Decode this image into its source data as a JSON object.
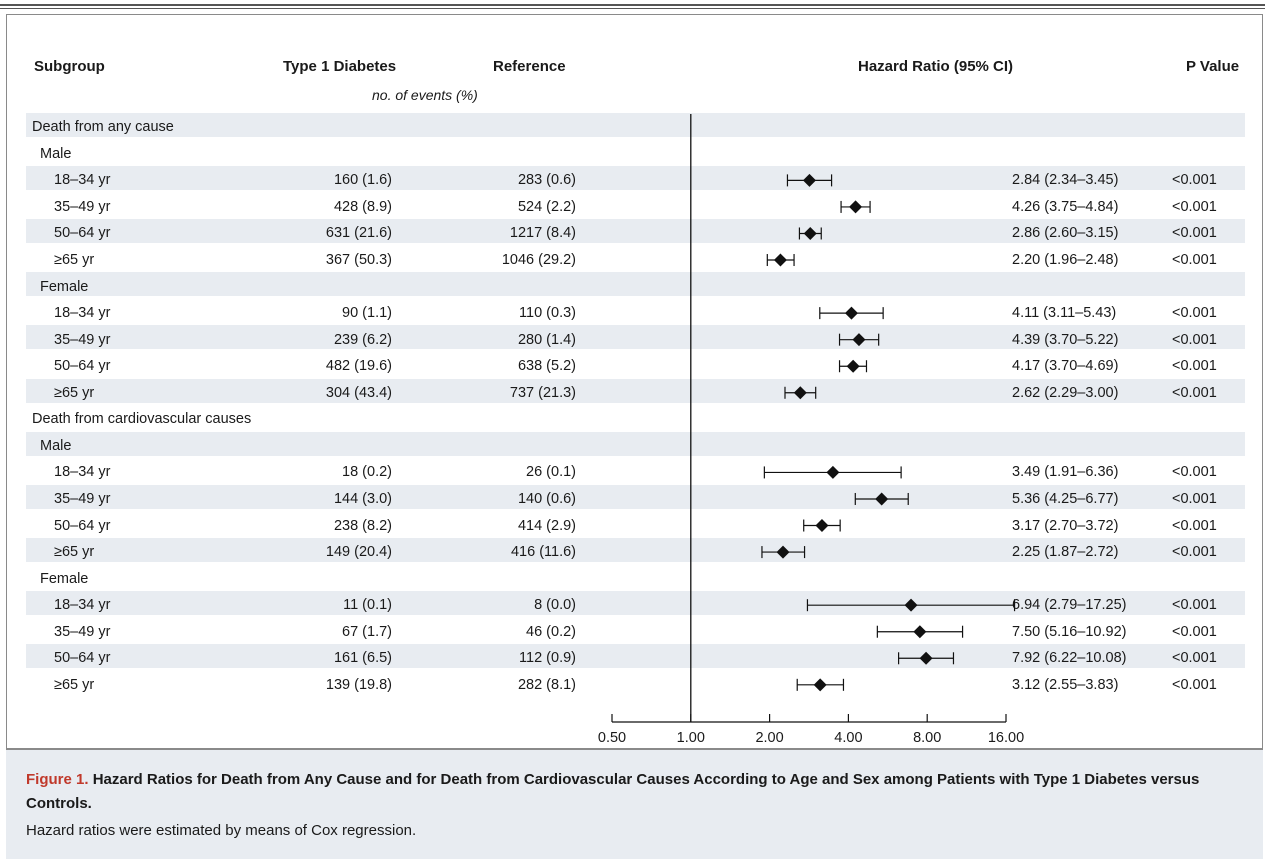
{
  "headers": {
    "subgroup": "Subgroup",
    "type1": "Type 1 Diabetes",
    "reference": "Reference",
    "hazard": "Hazard Ratio (95% CI)",
    "pvalue": "P Value",
    "events_note": "no. of events (%)"
  },
  "chart_data": {
    "type": "forest",
    "x_scale": "log2",
    "xlim": [
      0.5,
      16
    ],
    "x_ticks": [
      "0.50",
      "1.00",
      "2.00",
      "4.00",
      "8.00",
      "16.00"
    ],
    "x_tick_values": [
      0.5,
      1,
      2,
      4,
      8,
      16
    ],
    "reference_line": 1.0,
    "rows": [
      {
        "kind": "section",
        "label": "Death from any cause"
      },
      {
        "kind": "group",
        "label": "Male"
      },
      {
        "kind": "data",
        "label": "18–34 yr",
        "t1d": "160 (1.6)",
        "ref": "283 (0.6)",
        "hr": 2.84,
        "lo": 2.34,
        "hi": 3.45,
        "hr_text": "2.84 (2.34–3.45)",
        "p": "<0.001"
      },
      {
        "kind": "data",
        "label": "35–49 yr",
        "t1d": "428 (8.9)",
        "ref": "524 (2.2)",
        "hr": 4.26,
        "lo": 3.75,
        "hi": 4.84,
        "hr_text": "4.26 (3.75–4.84)",
        "p": "<0.001"
      },
      {
        "kind": "data",
        "label": "50–64 yr",
        "t1d": "631 (21.6)",
        "ref": "1217 (8.4)",
        "hr": 2.86,
        "lo": 2.6,
        "hi": 3.15,
        "hr_text": "2.86 (2.60–3.15)",
        "p": "<0.001"
      },
      {
        "kind": "data",
        "label": "≥65 yr",
        "t1d": "367 (50.3)",
        "ref": "1046 (29.2)",
        "hr": 2.2,
        "lo": 1.96,
        "hi": 2.48,
        "hr_text": "2.20 (1.96–2.48)",
        "p": "<0.001"
      },
      {
        "kind": "group",
        "label": "Female"
      },
      {
        "kind": "data",
        "label": "18–34 yr",
        "t1d": "90 (1.1)",
        "ref": "110 (0.3)",
        "hr": 4.11,
        "lo": 3.11,
        "hi": 5.43,
        "hr_text": "4.11 (3.11–5.43)",
        "p": "<0.001"
      },
      {
        "kind": "data",
        "label": "35–49 yr",
        "t1d": "239 (6.2)",
        "ref": "280 (1.4)",
        "hr": 4.39,
        "lo": 3.7,
        "hi": 5.22,
        "hr_text": "4.39 (3.70–5.22)",
        "p": "<0.001"
      },
      {
        "kind": "data",
        "label": "50–64 yr",
        "t1d": "482 (19.6)",
        "ref": "638 (5.2)",
        "hr": 4.17,
        "lo": 3.7,
        "hi": 4.69,
        "hr_text": "4.17 (3.70–4.69)",
        "p": "<0.001"
      },
      {
        "kind": "data",
        "label": "≥65 yr",
        "t1d": "304 (43.4)",
        "ref": "737 (21.3)",
        "hr": 2.62,
        "lo": 2.29,
        "hi": 3.0,
        "hr_text": "2.62 (2.29–3.00)",
        "p": "<0.001"
      },
      {
        "kind": "section",
        "label": "Death from cardiovascular causes"
      },
      {
        "kind": "group",
        "label": "Male"
      },
      {
        "kind": "data",
        "label": "18–34 yr",
        "t1d": "18 (0.2)",
        "ref": "26 (0.1)",
        "hr": 3.49,
        "lo": 1.91,
        "hi": 6.36,
        "hr_text": "3.49 (1.91–6.36)",
        "p": "<0.001"
      },
      {
        "kind": "data",
        "label": "35–49 yr",
        "t1d": "144 (3.0)",
        "ref": "140 (0.6)",
        "hr": 5.36,
        "lo": 4.25,
        "hi": 6.77,
        "hr_text": "5.36 (4.25–6.77)",
        "p": "<0.001"
      },
      {
        "kind": "data",
        "label": "50–64 yr",
        "t1d": "238 (8.2)",
        "ref": "414 (2.9)",
        "hr": 3.17,
        "lo": 2.7,
        "hi": 3.72,
        "hr_text": "3.17 (2.70–3.72)",
        "p": "<0.001"
      },
      {
        "kind": "data",
        "label": "≥65 yr",
        "t1d": "149 (20.4)",
        "ref": "416 (11.6)",
        "hr": 2.25,
        "lo": 1.87,
        "hi": 2.72,
        "hr_text": "2.25 (1.87–2.72)",
        "p": "<0.001"
      },
      {
        "kind": "group",
        "label": "Female"
      },
      {
        "kind": "data",
        "label": "18–34 yr",
        "t1d": "11 (0.1)",
        "ref": "8 (0.0)",
        "hr": 6.94,
        "lo": 2.79,
        "hi": 17.25,
        "hr_text": "6.94 (2.79–17.25)",
        "p": "<0.001"
      },
      {
        "kind": "data",
        "label": "35–49 yr",
        "t1d": "67 (1.7)",
        "ref": "46 (0.2)",
        "hr": 7.5,
        "lo": 5.16,
        "hi": 10.92,
        "hr_text": "7.50 (5.16–10.92)",
        "p": "<0.001"
      },
      {
        "kind": "data",
        "label": "50–64 yr",
        "t1d": "161 (6.5)",
        "ref": "112 (0.9)",
        "hr": 7.92,
        "lo": 6.22,
        "hi": 10.08,
        "hr_text": "7.92 (6.22–10.08)",
        "p": "<0.001"
      },
      {
        "kind": "data",
        "label": "≥65 yr",
        "t1d": "139 (19.8)",
        "ref": "282 (8.1)",
        "hr": 3.12,
        "lo": 2.55,
        "hi": 3.83,
        "hr_text": "3.12 (2.55–3.83)",
        "p": "<0.001"
      }
    ]
  },
  "caption": {
    "figure_label": "Figure 1.",
    "title": "Hazard Ratios for Death from Any Cause and for Death from Cardiovascular Causes According to Age and Sex among Patients with Type 1 Diabetes versus Controls.",
    "note": "Hazard ratios were estimated by means of Cox regression."
  }
}
